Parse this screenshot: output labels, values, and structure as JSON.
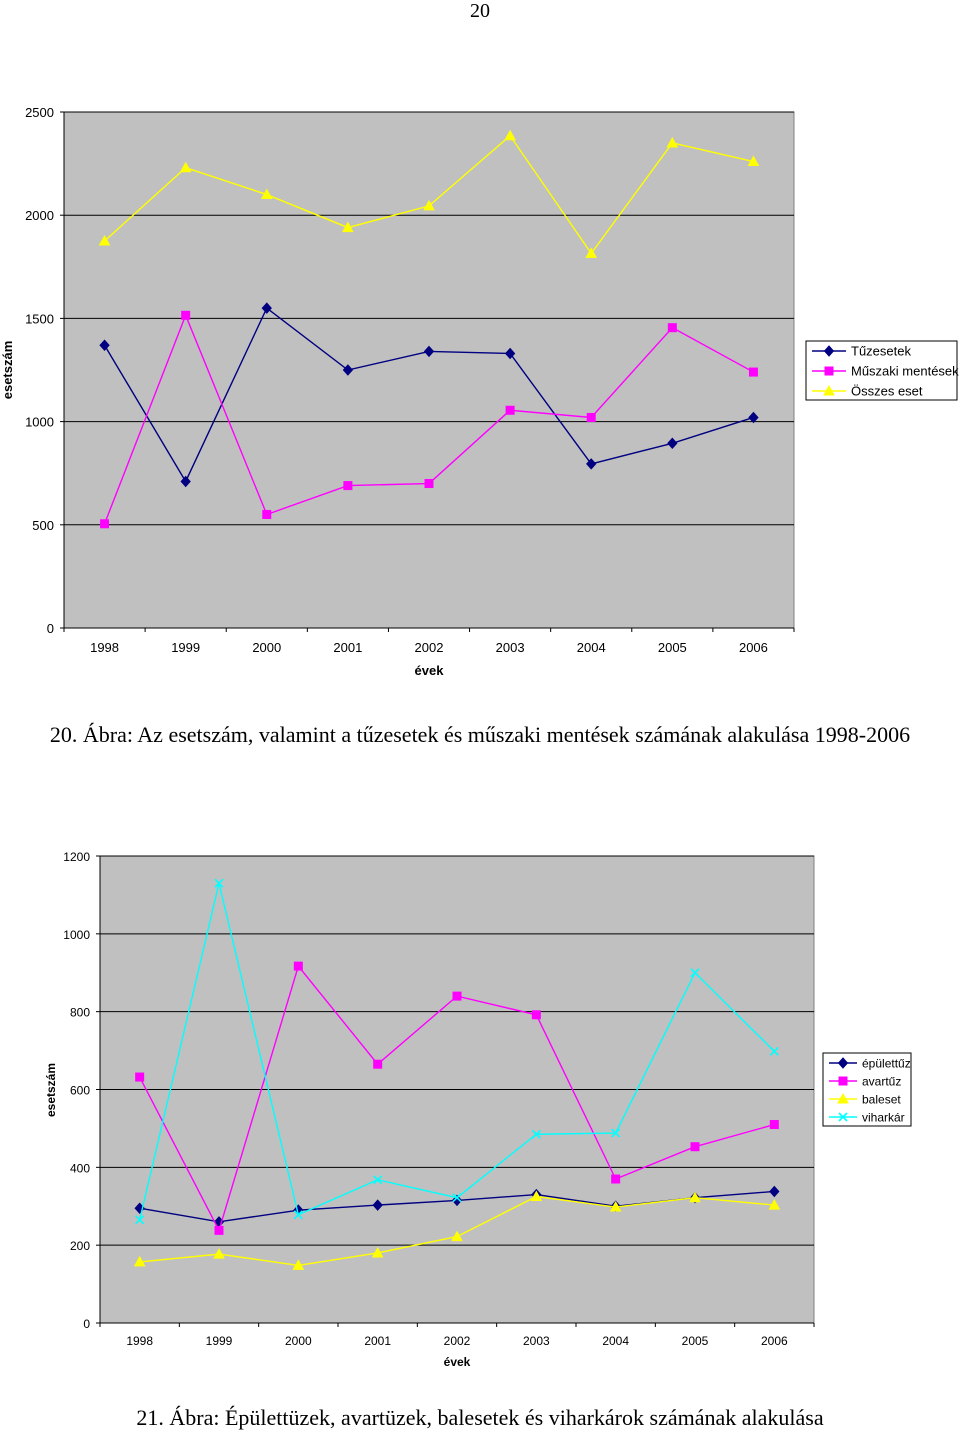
{
  "page_number": "20",
  "captions": [
    "20. Ábra: Az esetszám, valamint a tűzesetek és műszaki mentések számának alakulása 1998-2006",
    "21. Ábra: Épülettüzek, avartüzek, balesetek és viharkárok számának alakulása"
  ],
  "chart_data": [
    {
      "type": "line",
      "title": "",
      "xlabel": "évek",
      "ylabel": "esetszám",
      "categories": [
        "1998",
        "1999",
        "2000",
        "2001",
        "2002",
        "2003",
        "2004",
        "2005",
        "2006"
      ],
      "ylim": [
        0,
        2500
      ],
      "yticks": [
        "0",
        "500",
        "1000",
        "1500",
        "2000",
        "2500"
      ],
      "grid": true,
      "legend_position": "right",
      "plot_background": "#c0c0c0",
      "series": [
        {
          "name": "Tűzesetek",
          "color": "#000080",
          "marker": "diamond",
          "values": [
            1370,
            710,
            1550,
            1250,
            1340,
            1330,
            795,
            895,
            1020
          ]
        },
        {
          "name": "Műszaki mentések",
          "color": "#ff00ff",
          "marker": "square",
          "values": [
            505,
            1515,
            550,
            690,
            700,
            1055,
            1020,
            1455,
            1240
          ]
        },
        {
          "name": "Összes eset",
          "color": "#ffff00",
          "marker": "triangle",
          "values": [
            1875,
            2230,
            2100,
            1940,
            2045,
            2385,
            1815,
            2350,
            2260
          ]
        }
      ]
    },
    {
      "type": "line",
      "title": "",
      "xlabel": "évek",
      "ylabel": "esetszám",
      "categories": [
        "1998",
        "1999",
        "2000",
        "2001",
        "2002",
        "2003",
        "2004",
        "2005",
        "2006"
      ],
      "ylim": [
        0,
        1200
      ],
      "yticks": [
        "0",
        "200",
        "400",
        "600",
        "800",
        "1000",
        "1200"
      ],
      "grid": true,
      "legend_position": "right",
      "plot_background": "#c0c0c0",
      "series": [
        {
          "name": "épülettűz",
          "color": "#000080",
          "marker": "diamond",
          "values": [
            295,
            260,
            290,
            303,
            315,
            330,
            300,
            322,
            338
          ]
        },
        {
          "name": "avartűz",
          "color": "#ff00ff",
          "marker": "square",
          "values": [
            632,
            238,
            917,
            665,
            840,
            792,
            370,
            453,
            510
          ]
        },
        {
          "name": "baleset",
          "color": "#ffff00",
          "marker": "triangle",
          "values": [
            157,
            177,
            148,
            180,
            222,
            325,
            298,
            322,
            303
          ]
        },
        {
          "name": "viharkár",
          "color": "#00ffff",
          "marker": "x",
          "values": [
            265,
            1130,
            278,
            368,
            322,
            485,
            488,
            900,
            698
          ]
        }
      ]
    }
  ]
}
